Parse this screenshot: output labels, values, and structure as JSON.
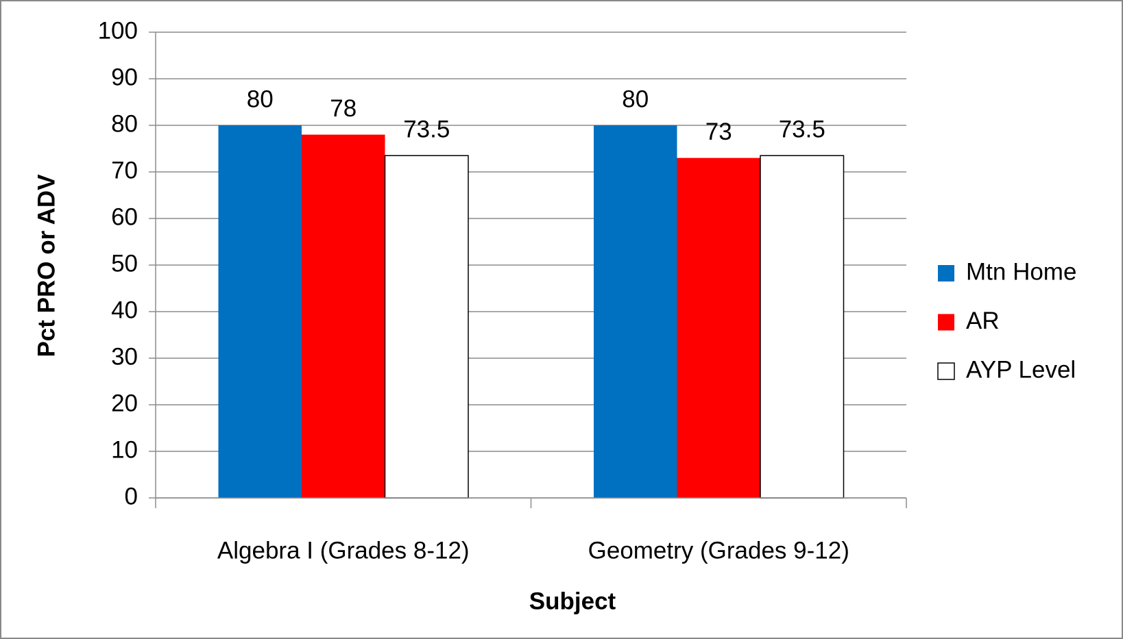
{
  "chart_data": {
    "type": "bar",
    "x_label": "Subject",
    "y_label": "Pct PRO or ADV",
    "categories": [
      "Algebra I (Grades 8-12)",
      "Geometry (Grades 9-12)"
    ],
    "series": [
      {
        "name": "Mtn Home",
        "color": "#0070c0",
        "values": [
          80,
          80
        ]
      },
      {
        "name": "AR",
        "color": "#ff0000",
        "values": [
          78,
          73
        ]
      },
      {
        "name": "AYP Level",
        "color": "#ffffff",
        "values": [
          73.5,
          73.5
        ]
      }
    ],
    "ylim": [
      0,
      100
    ],
    "yticks": [
      0,
      10,
      20,
      30,
      40,
      50,
      60,
      70,
      80,
      90,
      100
    ],
    "grid": true,
    "legend": "right"
  }
}
